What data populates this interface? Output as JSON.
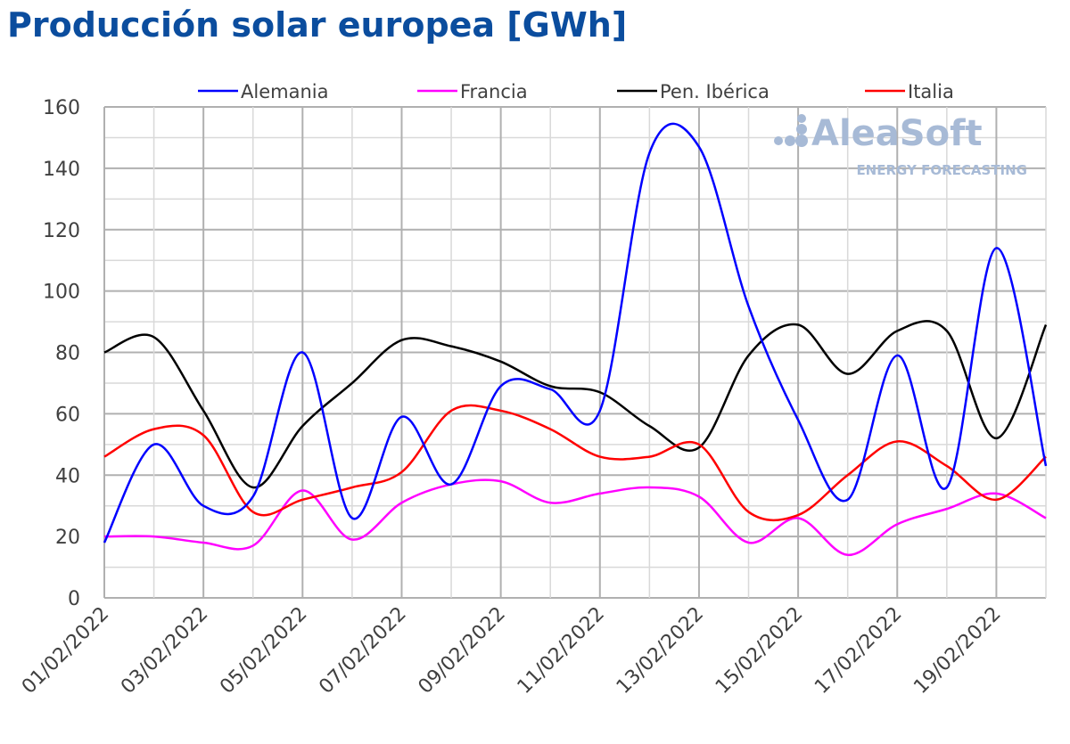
{
  "chart_data": {
    "type": "line",
    "title": "Producción solar europea [GWh]",
    "xlabel": "",
    "ylabel": "",
    "ylim": [
      0,
      160
    ],
    "yticks": [
      0,
      20,
      40,
      60,
      80,
      100,
      120,
      140,
      160
    ],
    "grid": true,
    "legend_placement": "top",
    "x": [
      "01/02/2022",
      "02/02/2022",
      "03/02/2022",
      "04/02/2022",
      "05/02/2022",
      "06/02/2022",
      "07/02/2022",
      "08/02/2022",
      "09/02/2022",
      "10/02/2022",
      "11/02/2022",
      "12/02/2022",
      "13/02/2022",
      "14/02/2022",
      "15/02/2022",
      "16/02/2022",
      "17/02/2022",
      "18/02/2022",
      "19/02/2022",
      "20/02/2022"
    ],
    "xtick_labels": [
      "01/02/2022",
      "03/02/2022",
      "05/02/2022",
      "07/02/2022",
      "09/02/2022",
      "11/02/2022",
      "13/02/2022",
      "15/02/2022",
      "17/02/2022",
      "19/02/2022"
    ],
    "series": [
      {
        "name": "Alemania",
        "color": "#0000ff",
        "values": [
          18,
          50,
          30,
          33,
          80,
          26,
          59,
          37,
          69,
          68,
          61,
          145,
          147,
          95,
          58,
          32,
          79,
          36,
          114,
          43
        ]
      },
      {
        "name": "Francia",
        "color": "#ff00ff",
        "values": [
          20,
          20,
          18,
          17,
          35,
          19,
          31,
          37,
          38,
          31,
          34,
          36,
          33,
          18,
          26,
          14,
          24,
          29,
          34,
          26
        ]
      },
      {
        "name": "Pen. Ibérica",
        "color": "#000000",
        "values": [
          80,
          85,
          61,
          36,
          56,
          70,
          84,
          82,
          77,
          69,
          67,
          56,
          49,
          79,
          89,
          73,
          87,
          87,
          52,
          89
        ]
      },
      {
        "name": "Italia",
        "color": "#ff0000",
        "values": [
          46,
          55,
          53,
          28,
          32,
          36,
          41,
          61,
          61,
          55,
          46,
          46,
          50,
          28,
          27,
          40,
          51,
          43,
          32,
          46
        ]
      }
    ],
    "watermark": {
      "brand": "AleaSoft",
      "tagline": "ENERGY FORECASTING"
    }
  }
}
